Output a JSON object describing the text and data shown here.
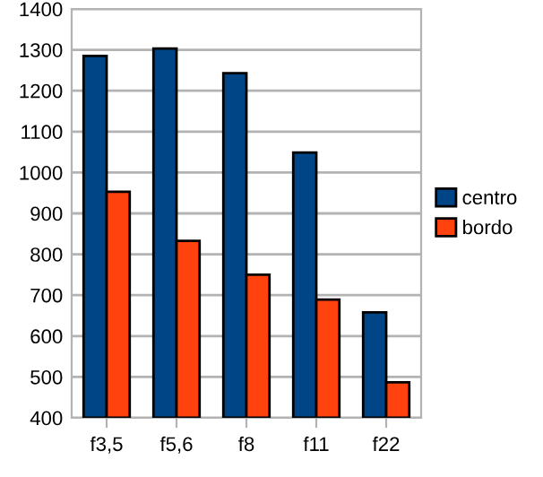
{
  "chart_data": {
    "type": "bar",
    "categories": [
      "f3,5",
      "f5,6",
      "f8",
      "f11",
      "f22"
    ],
    "series": [
      {
        "name": "centro",
        "color": "#004586",
        "values": [
          1285,
          1303,
          1243,
          1049,
          658
        ]
      },
      {
        "name": "bordo",
        "color": "#ff420e",
        "values": [
          953,
          833,
          750,
          689,
          487
        ]
      }
    ],
    "ylim": [
      400,
      1400
    ],
    "yticks": [
      400,
      500,
      600,
      700,
      800,
      900,
      1000,
      1100,
      1200,
      1300,
      1400
    ],
    "grid": "y",
    "legend": "right"
  }
}
